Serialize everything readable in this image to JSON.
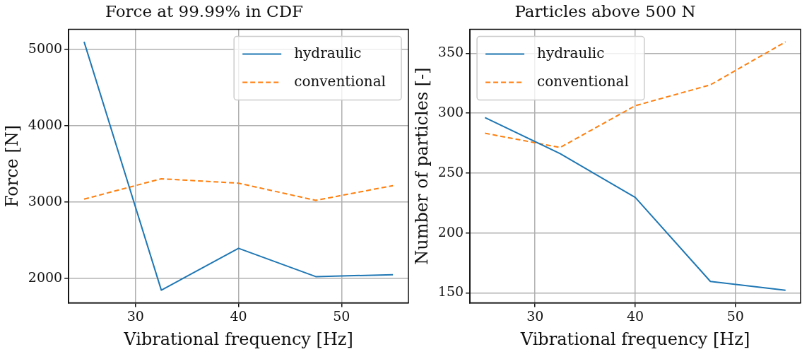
{
  "chart_data": [
    {
      "type": "line",
      "title": "Force at 99.99% in CDF",
      "xlabel": "Vibrational frequency [Hz]",
      "ylabel": "Force [N]",
      "x": [
        25,
        32.5,
        40,
        47.5,
        55
      ],
      "series": [
        {
          "name": "hydraulic",
          "color": "#1f77b4",
          "line_style": "solid",
          "values": [
            5103,
            1845,
            2394,
            2023,
            2048
          ]
        },
        {
          "name": "conventional",
          "color": "#ff7f0e",
          "line_style": "dashed",
          "values": [
            3039,
            3306,
            3248,
            3023,
            3216
          ]
        }
      ],
      "xlim": [
        23.5,
        56.5
      ],
      "xticks": [
        30,
        40,
        50
      ],
      "ylim": [
        1680,
        5265
      ],
      "yticks": [
        2000,
        3000,
        4000,
        5000
      ],
      "grid": true,
      "legend": "top right",
      "marker": "none"
    },
    {
      "type": "line",
      "title": "Particles above 500 N",
      "xlabel": "Vibrational frequency [Hz]",
      "ylabel": "Number of particles [-]",
      "x": [
        25,
        32.5,
        40,
        47.5,
        55
      ],
      "series": [
        {
          "name": "hydraulic",
          "color": "#1f77b4",
          "line_style": "solid",
          "values": [
            296.3,
            266.2,
            229.6,
            159.5,
            152.1
          ]
        },
        {
          "name": "conventional",
          "color": "#ff7f0e",
          "line_style": "dashed",
          "values": [
            283.2,
            271.3,
            306.2,
            323.6,
            359.5
          ]
        }
      ],
      "xlim": [
        23.5,
        56.5
      ],
      "xticks": [
        30,
        40,
        50
      ],
      "ylim": [
        141.7,
        369.9
      ],
      "yticks": [
        150,
        200,
        250,
        300,
        350
      ],
      "grid": true,
      "legend": "top left",
      "marker": "none"
    }
  ]
}
